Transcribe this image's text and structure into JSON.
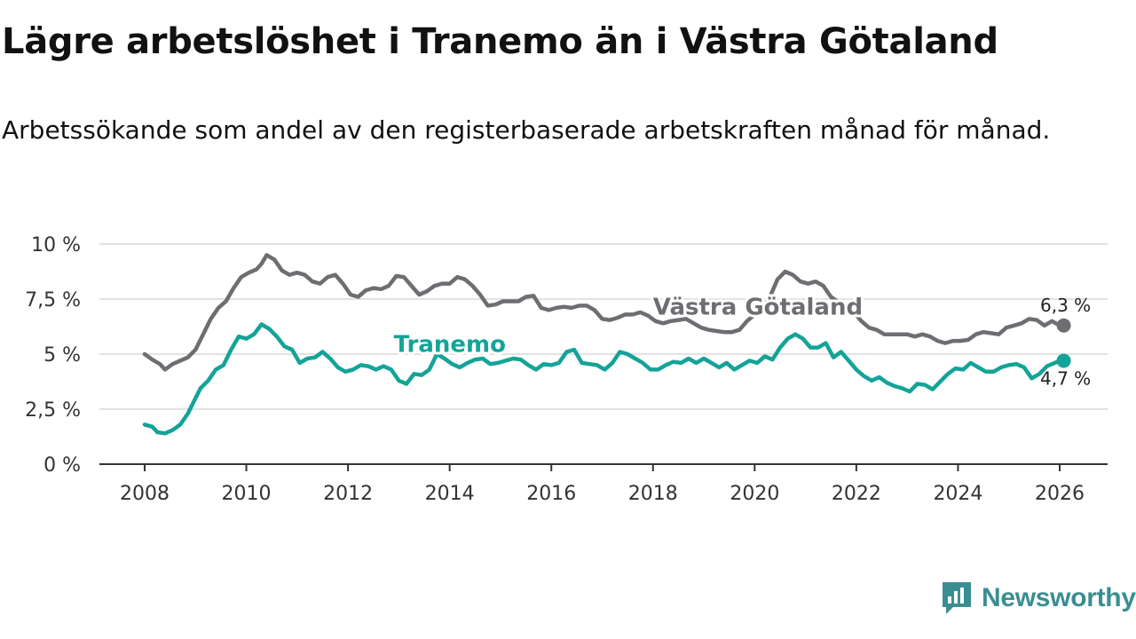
{
  "header": {
    "title": "Lägre arbetslöshet i Tranemo än i Västra Götaland",
    "subtitle": "Arbetssökande som andel av den registerbaserade arbetskraften månad för månad."
  },
  "logo": {
    "text": "Newsworthy",
    "icon": "newsworthy-logo-icon",
    "color": "#3a8e92"
  },
  "chart_data": {
    "type": "line",
    "title": "Lägre arbetslöshet i Tranemo än i Västra Götaland",
    "subtitle": "Arbetssökande som andel av den registerbaserade arbetskraften månad för månad.",
    "xlabel": "",
    "ylabel": "",
    "xlim": [
      2007.1,
      2027.0
    ],
    "ylim": [
      0,
      10
    ],
    "grid": true,
    "x_ticks": [
      2008,
      2010,
      2012,
      2014,
      2016,
      2018,
      2020,
      2022,
      2024,
      2026
    ],
    "x_tick_labels": [
      "2008",
      "2010",
      "2012",
      "2014",
      "2016",
      "2018",
      "2020",
      "2022",
      "2024",
      "2026"
    ],
    "y_ticks": [
      0,
      2.5,
      5,
      7.5,
      10
    ],
    "y_tick_labels": [
      "0 %",
      "2,5 %",
      "5 %",
      "7,5 %",
      "10 %"
    ],
    "series": [
      {
        "name": "Västra Götaland",
        "color": "#6e6d72",
        "end_label": "6,3 %",
        "label_pos": [
          2018.0,
          6.8
        ],
        "points": [
          [
            2008.0,
            5.0
          ],
          [
            2008.15,
            4.75
          ],
          [
            2008.3,
            4.55
          ],
          [
            2008.4,
            4.3
          ],
          [
            2008.55,
            4.55
          ],
          [
            2008.7,
            4.7
          ],
          [
            2008.85,
            4.85
          ],
          [
            2009.0,
            5.2
          ],
          [
            2009.15,
            5.9
          ],
          [
            2009.3,
            6.6
          ],
          [
            2009.45,
            7.1
          ],
          [
            2009.6,
            7.4
          ],
          [
            2009.75,
            8.0
          ],
          [
            2009.9,
            8.5
          ],
          [
            2010.05,
            8.7
          ],
          [
            2010.2,
            8.85
          ],
          [
            2010.3,
            9.1
          ],
          [
            2010.4,
            9.5
          ],
          [
            2010.55,
            9.3
          ],
          [
            2010.7,
            8.8
          ],
          [
            2010.85,
            8.6
          ],
          [
            2011.0,
            8.7
          ],
          [
            2011.15,
            8.6
          ],
          [
            2011.3,
            8.3
          ],
          [
            2011.45,
            8.2
          ],
          [
            2011.6,
            8.5
          ],
          [
            2011.75,
            8.6
          ],
          [
            2011.9,
            8.2
          ],
          [
            2012.05,
            7.7
          ],
          [
            2012.2,
            7.6
          ],
          [
            2012.35,
            7.9
          ],
          [
            2012.5,
            8.0
          ],
          [
            2012.65,
            7.95
          ],
          [
            2012.8,
            8.1
          ],
          [
            2012.95,
            8.55
          ],
          [
            2013.1,
            8.5
          ],
          [
            2013.25,
            8.1
          ],
          [
            2013.4,
            7.7
          ],
          [
            2013.55,
            7.85
          ],
          [
            2013.7,
            8.1
          ],
          [
            2013.85,
            8.2
          ],
          [
            2014.0,
            8.2
          ],
          [
            2014.15,
            8.5
          ],
          [
            2014.3,
            8.4
          ],
          [
            2014.45,
            8.1
          ],
          [
            2014.6,
            7.7
          ],
          [
            2014.75,
            7.2
          ],
          [
            2014.9,
            7.25
          ],
          [
            2015.05,
            7.4
          ],
          [
            2015.2,
            7.4
          ],
          [
            2015.35,
            7.4
          ],
          [
            2015.5,
            7.6
          ],
          [
            2015.65,
            7.65
          ],
          [
            2015.8,
            7.1
          ],
          [
            2015.95,
            7.0
          ],
          [
            2016.1,
            7.1
          ],
          [
            2016.25,
            7.15
          ],
          [
            2016.4,
            7.1
          ],
          [
            2016.55,
            7.2
          ],
          [
            2016.7,
            7.2
          ],
          [
            2016.85,
            7.0
          ],
          [
            2017.0,
            6.6
          ],
          [
            2017.15,
            6.55
          ],
          [
            2017.3,
            6.65
          ],
          [
            2017.45,
            6.8
          ],
          [
            2017.6,
            6.8
          ],
          [
            2017.75,
            6.9
          ],
          [
            2017.9,
            6.75
          ],
          [
            2018.05,
            6.5
          ],
          [
            2018.2,
            6.4
          ],
          [
            2018.35,
            6.5
          ],
          [
            2018.5,
            6.55
          ],
          [
            2018.65,
            6.6
          ],
          [
            2018.8,
            6.4
          ],
          [
            2018.95,
            6.2
          ],
          [
            2019.1,
            6.1
          ],
          [
            2019.25,
            6.05
          ],
          [
            2019.4,
            6.0
          ],
          [
            2019.55,
            6.0
          ],
          [
            2019.7,
            6.1
          ],
          [
            2019.85,
            6.5
          ],
          [
            2020.0,
            6.8
          ],
          [
            2020.15,
            7.0
          ],
          [
            2020.3,
            7.6
          ],
          [
            2020.45,
            8.4
          ],
          [
            2020.6,
            8.75
          ],
          [
            2020.75,
            8.6
          ],
          [
            2020.9,
            8.3
          ],
          [
            2021.05,
            8.2
          ],
          [
            2021.2,
            8.3
          ],
          [
            2021.35,
            8.1
          ],
          [
            2021.5,
            7.6
          ],
          [
            2021.65,
            7.35
          ],
          [
            2021.8,
            7.1
          ],
          [
            2021.95,
            6.9
          ],
          [
            2022.1,
            6.5
          ],
          [
            2022.25,
            6.2
          ],
          [
            2022.4,
            6.1
          ],
          [
            2022.55,
            5.9
          ],
          [
            2022.7,
            5.9
          ],
          [
            2022.85,
            5.9
          ],
          [
            2023.0,
            5.9
          ],
          [
            2023.15,
            5.8
          ],
          [
            2023.3,
            5.9
          ],
          [
            2023.45,
            5.8
          ],
          [
            2023.6,
            5.6
          ],
          [
            2023.75,
            5.5
          ],
          [
            2023.9,
            5.6
          ],
          [
            2024.05,
            5.6
          ],
          [
            2024.2,
            5.65
          ],
          [
            2024.35,
            5.9
          ],
          [
            2024.5,
            6.0
          ],
          [
            2024.65,
            5.95
          ],
          [
            2024.8,
            5.9
          ],
          [
            2024.95,
            6.2
          ],
          [
            2025.1,
            6.3
          ],
          [
            2025.25,
            6.4
          ],
          [
            2025.4,
            6.6
          ],
          [
            2025.55,
            6.55
          ],
          [
            2025.7,
            6.3
          ],
          [
            2025.85,
            6.5
          ],
          [
            2026.0,
            6.3
          ],
          [
            2026.08,
            6.3
          ]
        ]
      },
      {
        "name": "Tranemo",
        "color": "#14a398",
        "end_label": "4,7 %",
        "label_pos": [
          2012.9,
          5.1
        ],
        "points": [
          [
            2008.0,
            1.8
          ],
          [
            2008.15,
            1.7
          ],
          [
            2008.25,
            1.45
          ],
          [
            2008.4,
            1.4
          ],
          [
            2008.55,
            1.55
          ],
          [
            2008.7,
            1.8
          ],
          [
            2008.85,
            2.3
          ],
          [
            2009.0,
            3.0
          ],
          [
            2009.1,
            3.45
          ],
          [
            2009.25,
            3.8
          ],
          [
            2009.4,
            4.3
          ],
          [
            2009.55,
            4.5
          ],
          [
            2009.7,
            5.2
          ],
          [
            2009.85,
            5.8
          ],
          [
            2010.0,
            5.7
          ],
          [
            2010.15,
            5.9
          ],
          [
            2010.3,
            6.35
          ],
          [
            2010.45,
            6.15
          ],
          [
            2010.6,
            5.8
          ],
          [
            2010.75,
            5.35
          ],
          [
            2010.9,
            5.2
          ],
          [
            2011.05,
            4.6
          ],
          [
            2011.2,
            4.8
          ],
          [
            2011.35,
            4.85
          ],
          [
            2011.5,
            5.1
          ],
          [
            2011.65,
            4.8
          ],
          [
            2011.8,
            4.4
          ],
          [
            2011.95,
            4.2
          ],
          [
            2012.1,
            4.3
          ],
          [
            2012.25,
            4.5
          ],
          [
            2012.4,
            4.45
          ],
          [
            2012.55,
            4.3
          ],
          [
            2012.7,
            4.45
          ],
          [
            2012.85,
            4.3
          ],
          [
            2013.0,
            3.8
          ],
          [
            2013.15,
            3.65
          ],
          [
            2013.3,
            4.1
          ],
          [
            2013.45,
            4.05
          ],
          [
            2013.6,
            4.3
          ],
          [
            2013.75,
            5.0
          ],
          [
            2013.9,
            4.8
          ],
          [
            2014.05,
            4.55
          ],
          [
            2014.2,
            4.4
          ],
          [
            2014.35,
            4.6
          ],
          [
            2014.5,
            4.75
          ],
          [
            2014.65,
            4.8
          ],
          [
            2014.8,
            4.55
          ],
          [
            2014.95,
            4.6
          ],
          [
            2015.1,
            4.7
          ],
          [
            2015.25,
            4.8
          ],
          [
            2015.4,
            4.75
          ],
          [
            2015.55,
            4.5
          ],
          [
            2015.7,
            4.3
          ],
          [
            2015.85,
            4.55
          ],
          [
            2016.0,
            4.5
          ],
          [
            2016.15,
            4.6
          ],
          [
            2016.3,
            5.1
          ],
          [
            2016.45,
            5.2
          ],
          [
            2016.6,
            4.6
          ],
          [
            2016.75,
            4.55
          ],
          [
            2016.9,
            4.5
          ],
          [
            2017.05,
            4.3
          ],
          [
            2017.2,
            4.6
          ],
          [
            2017.35,
            5.1
          ],
          [
            2017.5,
            5.0
          ],
          [
            2017.65,
            4.8
          ],
          [
            2017.8,
            4.6
          ],
          [
            2017.95,
            4.3
          ],
          [
            2018.1,
            4.3
          ],
          [
            2018.25,
            4.5
          ],
          [
            2018.4,
            4.65
          ],
          [
            2018.55,
            4.6
          ],
          [
            2018.7,
            4.8
          ],
          [
            2018.85,
            4.6
          ],
          [
            2019.0,
            4.8
          ],
          [
            2019.15,
            4.6
          ],
          [
            2019.3,
            4.4
          ],
          [
            2019.45,
            4.6
          ],
          [
            2019.6,
            4.3
          ],
          [
            2019.75,
            4.5
          ],
          [
            2019.9,
            4.7
          ],
          [
            2020.05,
            4.6
          ],
          [
            2020.2,
            4.9
          ],
          [
            2020.35,
            4.75
          ],
          [
            2020.5,
            5.3
          ],
          [
            2020.65,
            5.7
          ],
          [
            2020.8,
            5.9
          ],
          [
            2020.95,
            5.7
          ],
          [
            2021.1,
            5.3
          ],
          [
            2021.25,
            5.3
          ],
          [
            2021.4,
            5.5
          ],
          [
            2021.55,
            4.85
          ],
          [
            2021.7,
            5.1
          ],
          [
            2021.85,
            4.7
          ],
          [
            2022.0,
            4.3
          ],
          [
            2022.15,
            4.0
          ],
          [
            2022.3,
            3.8
          ],
          [
            2022.45,
            3.95
          ],
          [
            2022.6,
            3.7
          ],
          [
            2022.75,
            3.55
          ],
          [
            2022.9,
            3.45
          ],
          [
            2023.05,
            3.3
          ],
          [
            2023.2,
            3.65
          ],
          [
            2023.35,
            3.6
          ],
          [
            2023.5,
            3.4
          ],
          [
            2023.65,
            3.75
          ],
          [
            2023.8,
            4.1
          ],
          [
            2023.95,
            4.35
          ],
          [
            2024.1,
            4.3
          ],
          [
            2024.25,
            4.6
          ],
          [
            2024.4,
            4.4
          ],
          [
            2024.55,
            4.2
          ],
          [
            2024.7,
            4.2
          ],
          [
            2024.85,
            4.4
          ],
          [
            2025.0,
            4.5
          ],
          [
            2025.15,
            4.55
          ],
          [
            2025.3,
            4.4
          ],
          [
            2025.45,
            3.9
          ],
          [
            2025.6,
            4.1
          ],
          [
            2025.75,
            4.45
          ],
          [
            2025.9,
            4.6
          ],
          [
            2026.0,
            4.7
          ],
          [
            2026.08,
            4.7
          ]
        ]
      }
    ]
  }
}
